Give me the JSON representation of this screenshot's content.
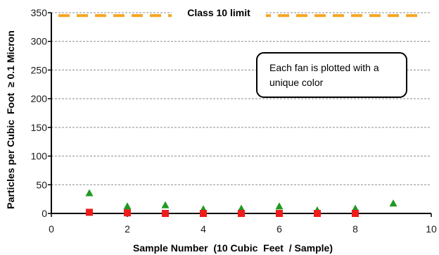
{
  "chart_data": {
    "type": "scatter",
    "xlabel": "Sample Number  (10 Cubic  Feet  / Sample)",
    "ylabel": "Particles per Cubic  Foot  ≥ 0.1 Micron",
    "xlim": [
      0,
      10
    ],
    "ylim": [
      0,
      350
    ],
    "x_ticks": [
      "0",
      "2",
      "4",
      "6",
      "8",
      "10"
    ],
    "y_ticks": [
      "0",
      "50",
      "100",
      "150",
      "200",
      "250",
      "300",
      "350"
    ],
    "grid": "horizontal dashed",
    "reference_line": {
      "label": "Class 10 limit",
      "value": 345,
      "color": "#f5a623"
    },
    "annotation": "Each fan is plotted with a unique color",
    "series": [
      {
        "color": "#1f9a1f",
        "marker": "triangle",
        "x": [
          1,
          2,
          3,
          4,
          5,
          6,
          7,
          8,
          9
        ],
        "y": [
          35,
          12,
          14,
          7,
          8,
          12,
          5,
          8,
          17
        ]
      },
      {
        "color": "#2a2adb",
        "marker": "circle",
        "x": [
          1,
          2
        ],
        "y": [
          2,
          1
        ]
      },
      {
        "color": "#ee1c1c",
        "marker": "square",
        "x": [
          1,
          2,
          3,
          4,
          5,
          6,
          7,
          8
        ],
        "y": [
          2,
          1,
          0,
          0,
          0,
          0,
          0,
          0
        ]
      }
    ]
  }
}
